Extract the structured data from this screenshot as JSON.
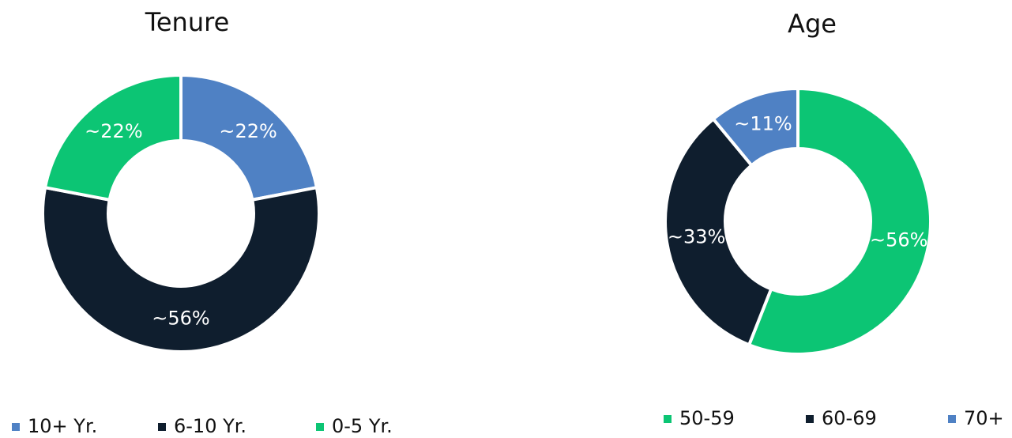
{
  "chart_data": [
    {
      "type": "donut",
      "title": "Tenure",
      "categories": [
        "10+ Yr.",
        "6-10 Yr.",
        "0-5 Yr."
      ],
      "values": [
        22,
        56,
        22
      ],
      "value_labels": [
        "~22%",
        "~56%",
        "~22%"
      ],
      "colors": [
        "#4f81c4",
        "#0f1e2e",
        "#0cc574"
      ]
    },
    {
      "type": "donut",
      "title": "Age",
      "categories": [
        "50-59",
        "60-69",
        "70+"
      ],
      "values": [
        56,
        33,
        11
      ],
      "value_labels": [
        "~56%",
        "~33%",
        "~11%"
      ],
      "colors": [
        "#0cc574",
        "#0f1e2e",
        "#4f81c4"
      ]
    }
  ]
}
